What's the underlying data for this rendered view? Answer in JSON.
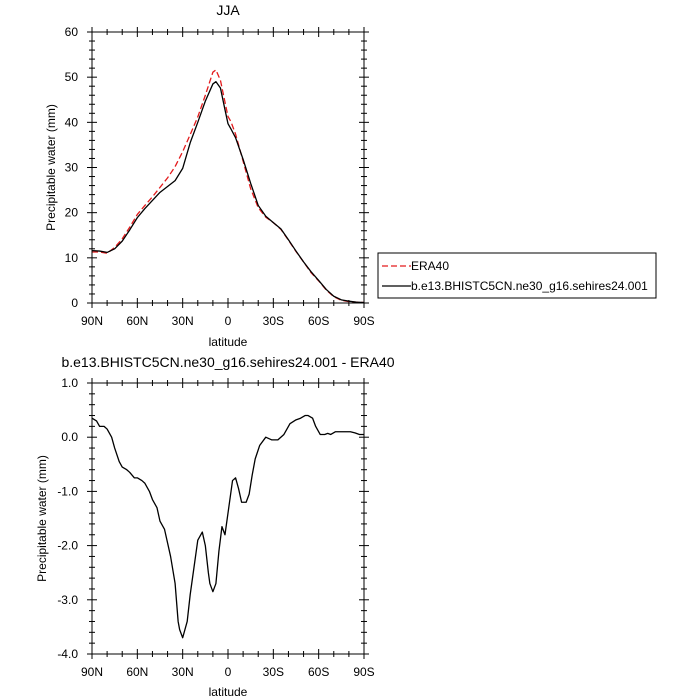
{
  "chart_data": [
    {
      "type": "line",
      "title": "JJA",
      "xlabel": "latitude",
      "ylabel": "Precipitable water (mm)",
      "xlim": [
        90,
        -90
      ],
      "ylim": [
        0,
        60
      ],
      "x_ticks": [
        90,
        60,
        30,
        0,
        -30,
        -60,
        -90
      ],
      "x_tick_labels": [
        "90N",
        "60N",
        "30N",
        "0",
        "30S",
        "60S",
        "90S"
      ],
      "y_ticks": [
        0,
        10,
        20,
        30,
        40,
        50,
        60
      ],
      "y_tick_labels": [
        "0",
        "10",
        "20",
        "30",
        "40",
        "50",
        "60"
      ],
      "grid": false,
      "legend": "right",
      "series": [
        {
          "name": "ERA40",
          "color": "#e31a1c",
          "dash": "dashed",
          "x": [
            90,
            85,
            80,
            75,
            70,
            65,
            60,
            55,
            50,
            45,
            40,
            35,
            30,
            25,
            20,
            15,
            10,
            8,
            5,
            2,
            0,
            -2,
            -5,
            -10,
            -15,
            -20,
            -25,
            -30,
            -35,
            -40,
            -45,
            -50,
            -55,
            -60,
            -65,
            -70,
            -75,
            -80,
            -85,
            -90
          ],
          "values": [
            11.3,
            11.3,
            11.0,
            12.3,
            14.2,
            16.8,
            19.6,
            21.6,
            23.5,
            25.6,
            27.7,
            30.2,
            33.5,
            37.3,
            41.2,
            46.0,
            51.1,
            51.6,
            49.3,
            44.5,
            41.3,
            40.1,
            37.4,
            31.4,
            25.3,
            21.1,
            19.0,
            17.8,
            16.3,
            13.9,
            11.4,
            9.1,
            6.7,
            4.9,
            2.9,
            1.4,
            0.6,
            0.3,
            0.2,
            0.1
          ]
        },
        {
          "name": "b.e13.BHISTC5CN.ne30_g16.sehires24.001",
          "color": "#000000",
          "dash": "solid",
          "x": [
            90,
            85,
            80,
            75,
            70,
            65,
            60,
            55,
            50,
            45,
            40,
            35,
            30,
            25,
            20,
            15,
            10,
            8,
            5,
            2,
            0,
            -2,
            -5,
            -10,
            -15,
            -20,
            -25,
            -30,
            -35,
            -40,
            -45,
            -50,
            -55,
            -60,
            -65,
            -70,
            -75,
            -80,
            -85,
            -90
          ],
          "values": [
            11.6,
            11.5,
            11.2,
            12.0,
            13.7,
            16.2,
            18.9,
            20.9,
            22.7,
            24.5,
            25.8,
            27.1,
            29.8,
            35.5,
            40.0,
            44.7,
            48.5,
            49.0,
            47.6,
            42.8,
            39.7,
            38.5,
            36.6,
            31.8,
            26.5,
            21.6,
            19.2,
            17.8,
            16.4,
            14.0,
            11.5,
            9.1,
            6.9,
            5.0,
            3.0,
            1.5,
            0.7,
            0.4,
            0.2,
            0.1
          ]
        }
      ]
    },
    {
      "type": "line",
      "title": "b.e13.BHISTC5CN.ne30_g16.sehires24.001 - ERA40",
      "xlabel": "latitude",
      "ylabel": "Precipitable water (mm)",
      "xlim": [
        90,
        -90
      ],
      "ylim": [
        -4.0,
        1.0
      ],
      "x_ticks": [
        90,
        60,
        30,
        0,
        -30,
        -60,
        -90
      ],
      "x_tick_labels": [
        "90N",
        "60N",
        "30N",
        "0",
        "30S",
        "60S",
        "90S"
      ],
      "y_ticks": [
        -4.0,
        -3.0,
        -2.0,
        -1.0,
        0.0,
        1.0
      ],
      "y_tick_labels": [
        "-4.0",
        "-3.0",
        "-2.0",
        "-1.0",
        "0.0",
        "1.0"
      ],
      "grid": false,
      "series": [
        {
          "color": "#000000",
          "dash": "solid",
          "x": [
            90,
            87,
            85,
            82,
            80,
            77,
            75,
            72,
            70,
            67,
            65,
            62,
            60,
            57,
            55,
            52,
            50,
            47,
            45,
            42,
            40,
            38,
            35,
            33,
            32,
            30,
            27,
            25,
            22,
            20,
            17,
            15,
            13,
            12,
            10,
            8,
            6,
            4,
            2,
            0,
            -3,
            -5,
            -7,
            -9,
            -12,
            -14,
            -16,
            -18,
            -21,
            -25,
            -29,
            -33,
            -37,
            -41,
            -45,
            -48,
            -51,
            -53,
            -56,
            -58,
            -61,
            -64,
            -66,
            -68,
            -71,
            -75,
            -78,
            -81,
            -84,
            -87,
            -90
          ],
          "values": [
            0.35,
            0.3,
            0.2,
            0.2,
            0.15,
            0.0,
            -0.2,
            -0.45,
            -0.55,
            -0.6,
            -0.65,
            -0.75,
            -0.75,
            -0.8,
            -0.85,
            -1.0,
            -1.15,
            -1.3,
            -1.55,
            -1.7,
            -1.95,
            -2.2,
            -2.7,
            -3.4,
            -3.55,
            -3.7,
            -3.4,
            -2.9,
            -2.3,
            -1.9,
            -1.75,
            -2.0,
            -2.5,
            -2.7,
            -2.85,
            -2.7,
            -2.1,
            -1.65,
            -1.8,
            -1.4,
            -0.8,
            -0.75,
            -0.95,
            -1.2,
            -1.2,
            -1.05,
            -0.7,
            -0.4,
            -0.15,
            0.0,
            -0.05,
            -0.05,
            0.05,
            0.25,
            0.32,
            0.35,
            0.4,
            0.4,
            0.35,
            0.2,
            0.05,
            0.05,
            0.07,
            0.05,
            0.1,
            0.1,
            0.1,
            0.1,
            0.08,
            0.05,
            0.05
          ]
        }
      ]
    }
  ]
}
